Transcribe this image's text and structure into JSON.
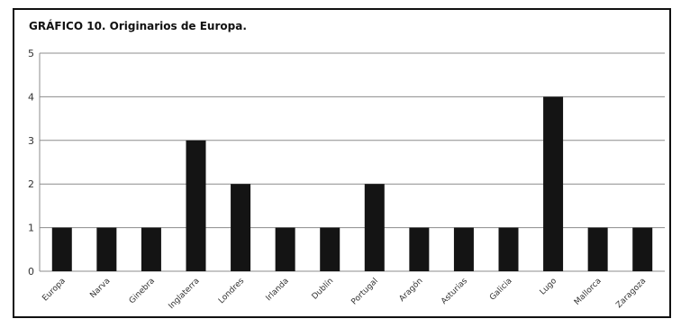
{
  "chart_data": {
    "type": "bar",
    "title": "GRÁFICO 10.  Originarios de Europa.",
    "xlabel": "",
    "ylabel": "",
    "categories": [
      "Europa",
      "Narva",
      "Ginebra",
      "Inglaterra",
      "Londres",
      "Irlanda",
      "Dublín",
      "Portugal",
      "Aragón",
      "Asturias",
      "Galicia",
      "Lugo",
      "Mallorca",
      "Zaragoza"
    ],
    "values": [
      1,
      1,
      1,
      3,
      2,
      1,
      1,
      2,
      1,
      1,
      1,
      4,
      1,
      1
    ],
    "ylim": [
      0,
      5
    ],
    "yticks": [
      0,
      1,
      2,
      3,
      4,
      5
    ],
    "grid": true,
    "legend": "none",
    "bar_color": "#141414",
    "grid_color": "#8c8c8c"
  }
}
